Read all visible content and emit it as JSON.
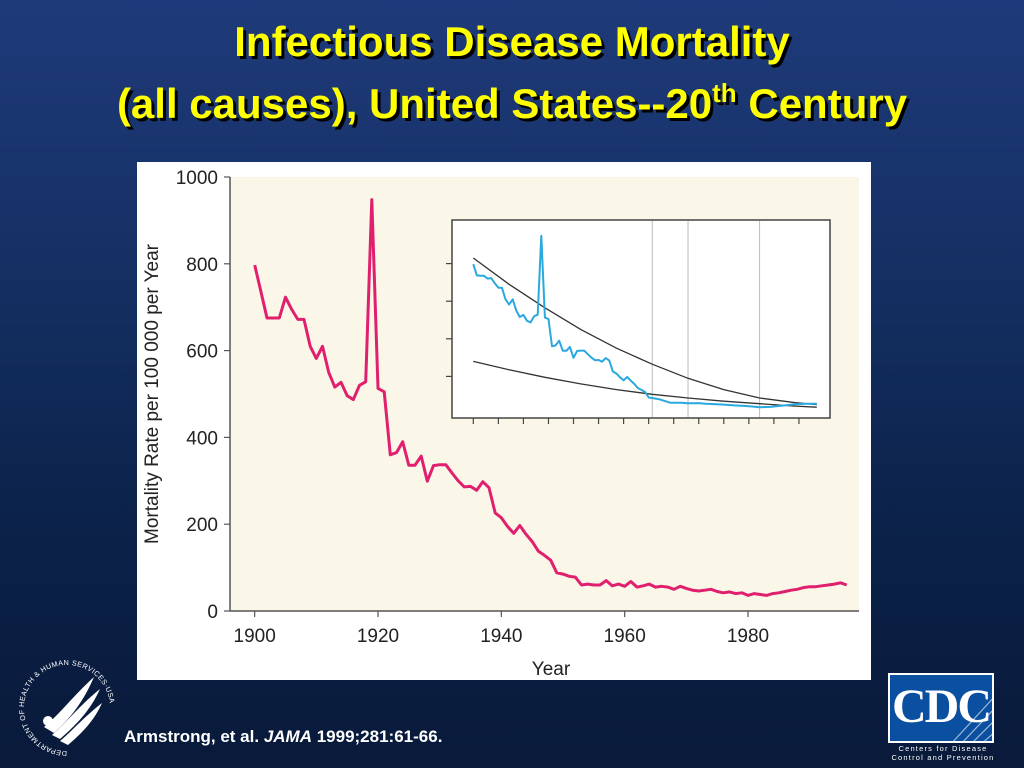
{
  "slide": {
    "title_line1": "Infectious Disease Mortality",
    "title_line2_pre": "(all causes), United States--20",
    "title_line2_sup": "th",
    "title_line2_post": " Century",
    "citation_authors": "Armstrong, et al. ",
    "citation_journal": "JAMA",
    "citation_ref": " 1999;281:61-66",
    "citation_end": ".",
    "hhs_logo_text": "DEPARTMENT OF HEALTH & HUMAN SERVICES·USA",
    "cdc_logo_text": "CDC",
    "cdc_caption_line1": "Centers for Disease",
    "cdc_caption_line2": "Control and Prevention"
  },
  "colors": {
    "title": "#ffff00",
    "main_line": "#e0206e",
    "inset_line": "#2aa8e0",
    "trend_line": "#333333",
    "plot_bg": "#fbf7e8",
    "inset_grid": "#bbbbbb"
  },
  "chart_data": [
    {
      "type": "line",
      "xlabel": "Year",
      "ylabel": "Mortality Rate per 100 000 per Year",
      "xlim": [
        1896,
        1998
      ],
      "ylim": [
        0,
        1000
      ],
      "xticks": [
        1900,
        1920,
        1940,
        1960,
        1980
      ],
      "yticks": [
        0,
        200,
        400,
        600,
        800,
        1000
      ],
      "grid": false,
      "series": [
        {
          "x": [
            1900,
            1901,
            1902,
            1903,
            1904,
            1905,
            1906,
            1907,
            1908,
            1909,
            1910,
            1911,
            1912,
            1913,
            1914,
            1915,
            1916,
            1917,
            1918,
            1919,
            1920,
            1921,
            1922,
            1923,
            1924,
            1925,
            1926,
            1927,
            1928,
            1929,
            1930,
            1931,
            1932,
            1933,
            1934,
            1935,
            1936,
            1937,
            1938,
            1939,
            1940,
            1941,
            1942,
            1943,
            1944,
            1945,
            1946,
            1947,
            1948,
            1949,
            1950,
            1951,
            1952,
            1953,
            1954,
            1955,
            1956,
            1957,
            1958,
            1959,
            1960,
            1961,
            1962,
            1963,
            1964,
            1965,
            1966,
            1967,
            1968,
            1969,
            1970,
            1971,
            1972,
            1973,
            1974,
            1975,
            1976,
            1977,
            1978,
            1979,
            1980,
            1981,
            1982,
            1983,
            1984,
            1985,
            1986,
            1987,
            1988,
            1989,
            1990,
            1991,
            1992,
            1993,
            1994,
            1995,
            1996
          ],
          "y": [
            797,
            737,
            675,
            675,
            675,
            723,
            695,
            672,
            672,
            610,
            582,
            610,
            550,
            516,
            527,
            496,
            487,
            520,
            528,
            948,
            513,
            505,
            360,
            365,
            390,
            336,
            336,
            357,
            299,
            335,
            337,
            337,
            318,
            300,
            286,
            287,
            278,
            298,
            284,
            226,
            215,
            195,
            179,
            197,
            177,
            160,
            138,
            128,
            117,
            88,
            85,
            80,
            78,
            60,
            62,
            60,
            60,
            70,
            58,
            62,
            57,
            68,
            55,
            58,
            62,
            55,
            57,
            55,
            50,
            57,
            52,
            48,
            46,
            48,
            50,
            45,
            42,
            44,
            40,
            42,
            36,
            40,
            38,
            36,
            40,
            42,
            45,
            48,
            50,
            54,
            56,
            56,
            58,
            60,
            62,
            65,
            60
          ]
        }
      ]
    },
    {
      "type": "line",
      "title": "",
      "note": "inset panel, no tick labels printed",
      "xlim": [
        1896,
        1998
      ],
      "ylim": [
        0,
        1000
      ],
      "grid": true,
      "series": [
        {
          "x": [
            1900,
            1901,
            1902,
            1903,
            1904,
            1905,
            1906,
            1907,
            1908,
            1909,
            1910,
            1911,
            1912,
            1913,
            1914,
            1915,
            1916,
            1917,
            1918,
            1919,
            1920,
            1921,
            1922,
            1923,
            1924,
            1925,
            1926,
            1927,
            1928,
            1929,
            1930,
            1931,
            1932,
            1933,
            1934,
            1935,
            1936,
            1937,
            1938,
            1939,
            1940,
            1941,
            1942,
            1943,
            1944,
            1945,
            1946,
            1947,
            1948,
            1949,
            1950,
            1952,
            1955,
            1958,
            1960,
            1963,
            1965,
            1968,
            1970,
            1973,
            1975,
            1978,
            1980,
            1983,
            1985,
            1988,
            1990,
            1993,
            1996
          ],
          "y": [
            797,
            737,
            735,
            735,
            720,
            723,
            695,
            672,
            672,
            610,
            582,
            610,
            550,
            516,
            527,
            496,
            487,
            520,
            528,
            948,
            513,
            505,
            360,
            365,
            390,
            336,
            336,
            357,
            299,
            335,
            337,
            337,
            318,
            300,
            286,
            287,
            278,
            298,
            284,
            226,
            215,
            195,
            179,
            197,
            177,
            160,
            138,
            128,
            117,
            88,
            85,
            78,
            60,
            60,
            57,
            58,
            55,
            52,
            50,
            46,
            44,
            40,
            36,
            38,
            42,
            48,
            52,
            55,
            55
          ]
        },
        {
          "x": [
            1900,
            1910,
            1920,
            1930,
            1940,
            1950,
            1960,
            1970,
            1980,
            1990,
            1996
          ],
          "y": [
            830,
            690,
            565,
            450,
            350,
            265,
            190,
            130,
            85,
            60,
            50
          ]
        },
        {
          "x": [
            1900,
            1910,
            1920,
            1930,
            1940,
            1950,
            1960,
            1970,
            1980,
            1990,
            1996
          ],
          "y": [
            280,
            235,
            195,
            160,
            130,
            105,
            85,
            68,
            55,
            42,
            36
          ]
        }
      ]
    }
  ]
}
